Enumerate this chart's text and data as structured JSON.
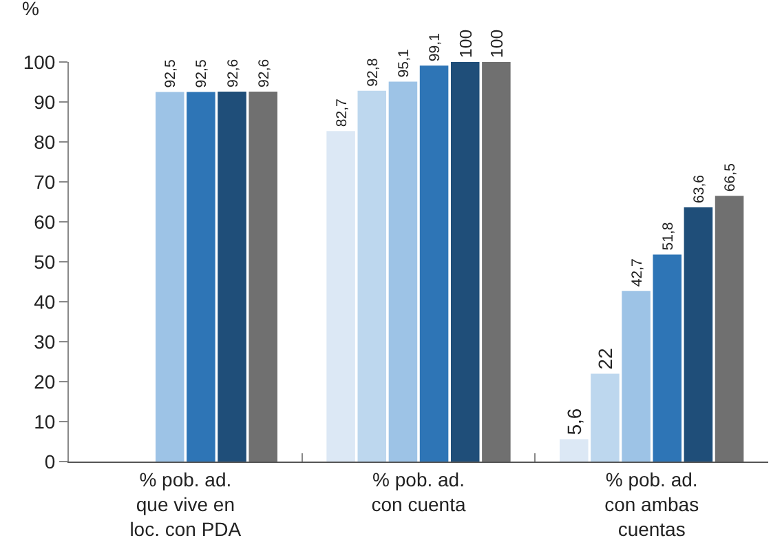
{
  "chart_data": {
    "type": "bar",
    "ylabel": "%",
    "categories": [
      "% pob. ad.\nque vive en\nloc. con PDA",
      "% pob. ad.\ncon cuenta",
      "% pob. ad.\ncon ambas\ncuentas"
    ],
    "series": [
      {
        "color": "#dce8f5",
        "values": [
          null,
          82.7,
          5.6
        ],
        "value_labels": [
          null,
          "82,7",
          "5,6"
        ]
      },
      {
        "color": "#bdd7ee",
        "values": [
          null,
          92.8,
          22
        ],
        "value_labels": [
          null,
          "92,8",
          "22"
        ]
      },
      {
        "color": "#9dc3e6",
        "values": [
          92.5,
          95.1,
          42.7
        ],
        "value_labels": [
          "92,5",
          "95,1",
          "42,7"
        ]
      },
      {
        "color": "#2e75b6",
        "values": [
          92.5,
          99.1,
          51.8
        ],
        "value_labels": [
          "92,5",
          "99,1",
          "51,8"
        ]
      },
      {
        "color": "#1f4e79",
        "values": [
          92.6,
          100,
          63.6
        ],
        "value_labels": [
          "92,6",
          "100",
          "63,6"
        ]
      },
      {
        "color": "#707070",
        "values": [
          92.6,
          100,
          66.5
        ],
        "value_labels": [
          "92,6",
          "100",
          "66,5"
        ]
      }
    ],
    "ylim": [
      0,
      100
    ],
    "yticks": [
      0,
      10,
      20,
      30,
      40,
      50,
      60,
      70,
      80,
      90,
      100
    ],
    "grid": false,
    "legend": false
  }
}
